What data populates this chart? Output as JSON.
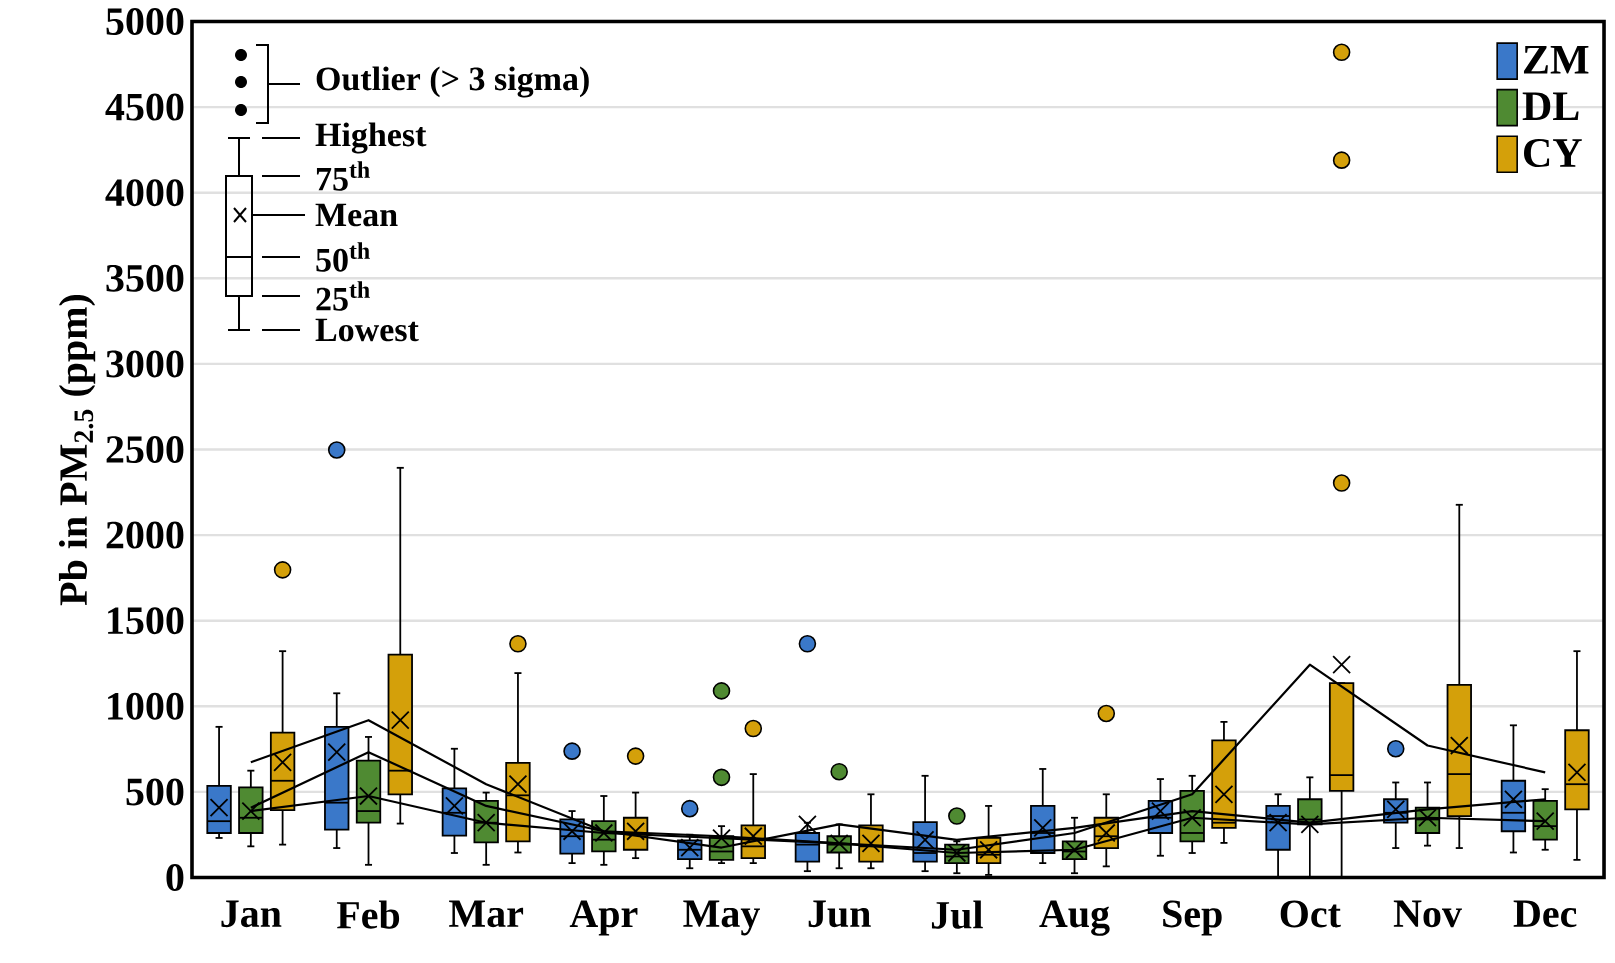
{
  "chart_data": {
    "type": "box",
    "ylabel": "Pb in PM$_{2.5}$ (ppm)",
    "categories": [
      "Jan",
      "Feb",
      "Mar",
      "Apr",
      "May",
      "Jun",
      "Jul",
      "Aug",
      "Sep",
      "Oct",
      "Nov",
      "Dec"
    ],
    "ylim": [
      0,
      5000
    ],
    "yticks": [
      0,
      500,
      1000,
      1500,
      2000,
      2500,
      3000,
      3500,
      4000,
      4500,
      5000
    ],
    "grid": "y",
    "legend": "top right",
    "line_style": "solid",
    "annotations": [
      "Outlier (> 3 sigma)",
      "Highest",
      "75$^{th}$",
      "Mean",
      "50$^{th}$",
      "25$^{th}$",
      "Lowest"
    ],
    "series": [
      {
        "name": "ZM",
        "color": "#3a78c9",
        "boxes": [
          {
            "low": 231,
            "q1": 260,
            "median": 329,
            "q3": 535,
            "high": 880,
            "mean": 408
          },
          {
            "low": 172,
            "q1": 280,
            "median": 437,
            "q3": 880,
            "high": 1076,
            "mean": 732,
            "outliers": [
              2497
            ]
          },
          {
            "low": 143,
            "q1": 245,
            "median": 378,
            "q3": 520,
            "high": 752,
            "mean": 418
          },
          {
            "low": 84,
            "q1": 139,
            "median": 241,
            "q3": 339,
            "high": 388,
            "mean": 270,
            "outliers": [
              738
            ]
          },
          {
            "low": 54,
            "q1": 107,
            "median": 162,
            "q3": 217,
            "high": 250,
            "mean": 175,
            "outliers": [
              402
            ]
          },
          {
            "low": 37,
            "q1": 93,
            "median": 192,
            "q3": 260,
            "high": 320,
            "mean": 310,
            "outliers": [
              1365
            ]
          },
          {
            "low": 37,
            "q1": 93,
            "median": 143,
            "q3": 323,
            "high": 594,
            "mean": 220
          },
          {
            "low": 84,
            "q1": 143,
            "median": 260,
            "q3": 418,
            "high": 634,
            "mean": 290
          },
          {
            "low": 127,
            "q1": 260,
            "median": 349,
            "q3": 447,
            "high": 575,
            "mean": 388
          },
          {
            "low": 0,
            "q1": 162,
            "median": 359,
            "q3": 418,
            "high": 486,
            "mean": 320
          },
          {
            "low": 172,
            "q1": 320,
            "median": 378,
            "q3": 457,
            "high": 555,
            "mean": 398,
            "outliers": [
              752
            ]
          },
          {
            "low": 146,
            "q1": 270,
            "median": 378,
            "q3": 565,
            "high": 889,
            "mean": 457
          }
        ]
      },
      {
        "name": "DL",
        "color": "#4f8a32",
        "boxes": [
          {
            "low": 182,
            "q1": 260,
            "median": 349,
            "q3": 526,
            "high": 624,
            "mean": 388
          },
          {
            "low": 74,
            "q1": 320,
            "median": 388,
            "q3": 683,
            "high": 821,
            "mean": 476
          },
          {
            "low": 74,
            "q1": 205,
            "median": 320,
            "q3": 447,
            "high": 496,
            "mean": 320
          },
          {
            "low": 74,
            "q1": 152,
            "median": 221,
            "q3": 329,
            "high": 476,
            "mean": 260
          },
          {
            "low": 84,
            "q1": 103,
            "median": 152,
            "q3": 241,
            "high": 300,
            "mean": 230,
            "outliers": [
              585,
              1090
            ]
          },
          {
            "low": 54,
            "q1": 146,
            "median": 192,
            "q3": 241,
            "high": 310,
            "mean": 199,
            "outliers": [
              618
            ]
          },
          {
            "low": 25,
            "q1": 84,
            "median": 123,
            "q3": 192,
            "high": 211,
            "mean": 143,
            "outliers": [
              359
            ]
          },
          {
            "low": 25,
            "q1": 107,
            "median": 152,
            "q3": 211,
            "high": 349,
            "mean": 162
          },
          {
            "low": 143,
            "q1": 211,
            "median": 260,
            "q3": 506,
            "high": 594,
            "mean": 349
          },
          {
            "low": 0,
            "q1": 310,
            "median": 339,
            "q3": 457,
            "high": 585,
            "mean": 310
          },
          {
            "low": 186,
            "q1": 260,
            "median": 339,
            "q3": 408,
            "high": 555,
            "mean": 349
          },
          {
            "low": 162,
            "q1": 221,
            "median": 300,
            "q3": 447,
            "high": 516,
            "mean": 329
          }
        ]
      },
      {
        "name": "CY",
        "color": "#d4a00a",
        "boxes": [
          {
            "low": 192,
            "q1": 394,
            "median": 565,
            "q3": 846,
            "high": 1322,
            "mean": 673,
            "outliers": [
              1797
            ]
          },
          {
            "low": 315,
            "q1": 486,
            "median": 624,
            "q3": 1302,
            "high": 2393,
            "mean": 919
          },
          {
            "low": 146,
            "q1": 211,
            "median": 480,
            "q3": 669,
            "high": 1194,
            "mean": 545,
            "outliers": [
              1365
            ]
          },
          {
            "low": 113,
            "q1": 162,
            "median": 260,
            "q3": 349,
            "high": 496,
            "mean": 270,
            "outliers": [
              709
            ]
          },
          {
            "low": 84,
            "q1": 113,
            "median": 182,
            "q3": 304,
            "high": 604,
            "mean": 241,
            "outliers": [
              870
            ]
          },
          {
            "low": 54,
            "q1": 93,
            "median": 182,
            "q3": 304,
            "high": 486,
            "mean": 199
          },
          {
            "low": 15,
            "q1": 84,
            "median": 133,
            "q3": 231,
            "high": 418,
            "mean": 162
          },
          {
            "low": 65,
            "q1": 172,
            "median": 241,
            "q3": 349,
            "high": 486,
            "mean": 260,
            "outliers": [
              958
            ]
          },
          {
            "low": 202,
            "q1": 290,
            "median": 320,
            "q3": 801,
            "high": 909,
            "mean": 486
          },
          {
            "low": 0,
            "q1": 506,
            "median": 598,
            "q3": 1135,
            "high": 1135,
            "mean": 1243,
            "outliers": [
              2304,
              4190,
              4820
            ]
          },
          {
            "low": 172,
            "q1": 359,
            "median": 604,
            "q3": 1125,
            "high": 2177,
            "mean": 771
          },
          {
            "low": 103,
            "q1": 398,
            "median": 545,
            "q3": 860,
            "high": 1322,
            "mean": 614
          }
        ]
      },
      {
        "type": "line",
        "color": "#000000",
        "values": [
          408,
          732,
          418,
          270,
          175,
          310,
          220,
          290,
          388,
          320,
          398,
          457
        ]
      },
      {
        "type": "line",
        "color": "#000000",
        "values": [
          388,
          476,
          320,
          260,
          230,
          199,
          143,
          162,
          349,
          310,
          349,
          329
        ]
      },
      {
        "type": "line",
        "color": "#000000",
        "values": [
          673,
          919,
          545,
          270,
          241,
          199,
          162,
          260,
          486,
          1243,
          771,
          614
        ]
      }
    ]
  }
}
